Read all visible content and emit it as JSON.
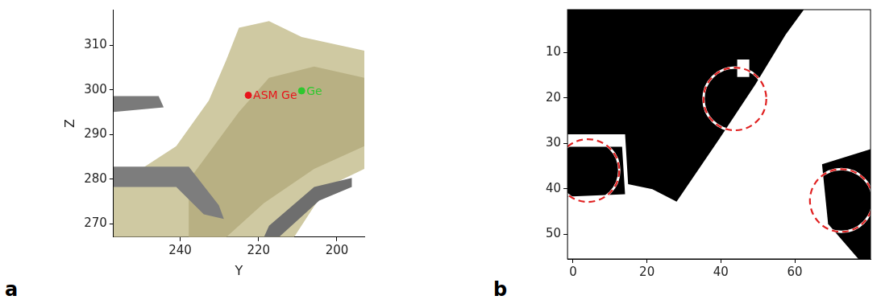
{
  "chart_data": [
    {
      "panel_label": "a",
      "type": "scatter",
      "x_label": "Y",
      "y_label": "Z",
      "xlim": [
        257,
        193
      ],
      "xticks": [
        240,
        220,
        200
      ],
      "ylim": [
        267,
        318
      ],
      "yticks": [
        270,
        280,
        290,
        300,
        310
      ],
      "grid": false,
      "series": [
        {
          "name": "ASM Ge",
          "color": "#e8141b",
          "marker": "circle",
          "x": [
            222.6
          ],
          "values": [
            298.8
          ]
        },
        {
          "name": "Ge",
          "color": "#2ec82e",
          "marker": "circle",
          "x": [
            209
          ],
          "values": [
            299.8
          ]
        }
      ]
    },
    {
      "panel_label": "b",
      "type": "scatter",
      "xlim": [
        -1.5,
        80.5
      ],
      "xticks": [
        0,
        20,
        40,
        60
      ],
      "ylim": [
        55.5,
        0.5
      ],
      "yticks": [
        10,
        20,
        30,
        40,
        50
      ],
      "grid": false,
      "series": [
        {
          "color": "#e02020",
          "marker": "circle",
          "line_style": "dashed",
          "x": [
            4,
            43.8,
            72.6
          ],
          "values": [
            36,
            20.2,
            42.6
          ],
          "radius": [
            8.5,
            8.5,
            8.5
          ]
        }
      ]
    }
  ]
}
